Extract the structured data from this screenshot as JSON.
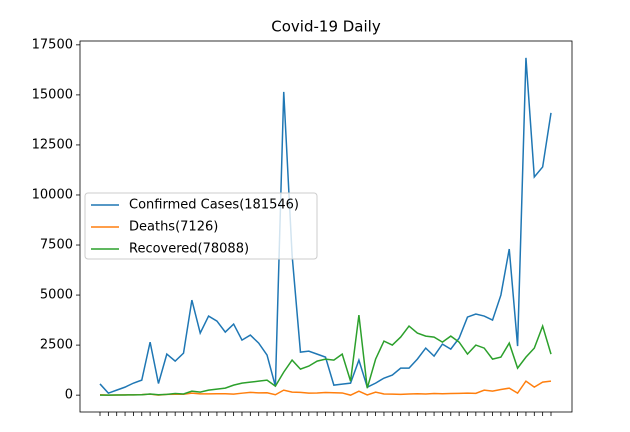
{
  "chart_data": {
    "type": "line",
    "title": "Covid-19 Daily",
    "categories": [
      null,
      null,
      null,
      null,
      null,
      null,
      null,
      null,
      null,
      null,
      null,
      null,
      null,
      null,
      null,
      null,
      null,
      null,
      null,
      null,
      null,
      null,
      null,
      null,
      null,
      null,
      null,
      null,
      null,
      null,
      null,
      null,
      null,
      null,
      null,
      null,
      null,
      null,
      null,
      null,
      null,
      null,
      null,
      null,
      null,
      null,
      null,
      null,
      null,
      null,
      null,
      null,
      null,
      null,
      null
    ],
    "series": [
      {
        "name": "Confirmed Cases(181546)",
        "color": "#1f77b4",
        "values": [
          560,
          100,
          250,
          400,
          600,
          750,
          2650,
          580,
          2050,
          1700,
          2100,
          4750,
          3100,
          3950,
          3700,
          3150,
          3550,
          2750,
          3000,
          2600,
          2000,
          450,
          15150,
          7000,
          2150,
          2200,
          2050,
          1900,
          500,
          550,
          600,
          1750,
          400,
          600,
          850,
          1000,
          1350,
          1350,
          1800,
          2350,
          1950,
          2550,
          2300,
          2850,
          3900,
          4050,
          3950,
          3750,
          5000,
          7300,
          2450,
          16850,
          10900,
          11400,
          14100
        ]
      },
      {
        "name": "Deaths(7126)",
        "color": "#ff7f0e",
        "values": [
          17,
          1,
          8,
          16,
          14,
          26,
          49,
          2,
          38,
          42,
          46,
          103,
          64,
          66,
          72,
          70,
          52,
          98,
          136,
          115,
          118,
          20,
          250,
          150,
          140,
          100,
          110,
          130,
          120,
          110,
          0,
          200,
          10,
          150,
          60,
          50,
          40,
          60,
          70,
          60,
          80,
          70,
          80,
          90,
          100,
          90,
          250,
          200,
          280,
          350,
          100,
          700,
          400,
          650,
          700
        ]
      },
      {
        "name": "Recovered(78088)",
        "color": "#2ca02c",
        "values": [
          0,
          0,
          5,
          10,
          15,
          20,
          60,
          20,
          40,
          80,
          60,
          200,
          150,
          250,
          300,
          350,
          500,
          600,
          650,
          700,
          750,
          450,
          1150,
          1750,
          1300,
          1450,
          1700,
          1800,
          1750,
          2050,
          700,
          4000,
          350,
          1800,
          2700,
          2500,
          2900,
          3450,
          3100,
          2950,
          2900,
          2650,
          2950,
          2650,
          2050,
          2500,
          2350,
          1800,
          1900,
          2600,
          1350,
          1900,
          2350,
          3450,
          2050
        ]
      }
    ],
    "ylim": [
      -842,
      17692
    ],
    "yticks": [
      0,
      2500,
      5000,
      7500,
      10000,
      12500,
      15000,
      17500
    ],
    "legend": "center left"
  }
}
